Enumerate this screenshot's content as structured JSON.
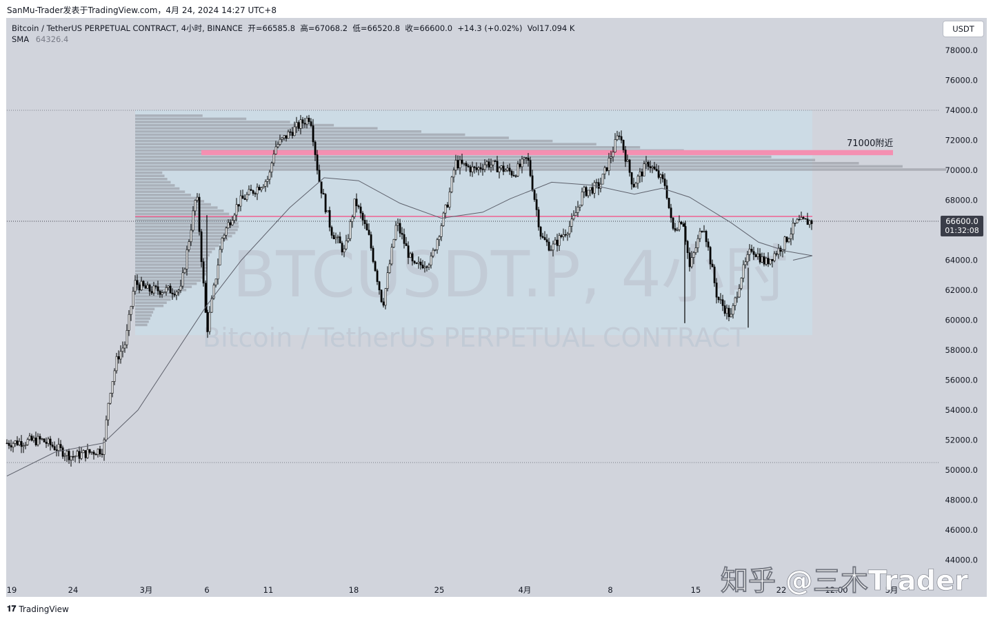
{
  "header": {
    "caption": "SanMu-Trader发表于TradingView.com，4月 24, 2024 14:27 UTC+8"
  },
  "legend": {
    "symbol": "Bitcoin / TetherUS PERPETUAL CONTRACT, 4小时, BINANCE",
    "open_label": "开=",
    "open": "66585.8",
    "high_label": "高=",
    "high": "67068.2",
    "low_label": "低=",
    "low": "66520.8",
    "close_label": "收=",
    "close": "66600.0",
    "change": "+14.3 (+0.02%)",
    "vol_label": "Vol",
    "vol": "17.094 K",
    "sma_label": "SMA",
    "sma_value": "64326.4"
  },
  "currency_button": "USDT",
  "watermark": {
    "ticker": "BTCUSDT.P, 4小时",
    "name": "Bitcoin / TetherUS PERPETUAL CONTRACT"
  },
  "overlay_text": "知乎 @三木Trader",
  "footer": {
    "brand": "TradingView"
  },
  "colors": {
    "background": "#d1d4dc",
    "range_box": "#cbdce6",
    "resistance_band": "#f48fb1",
    "price_line": "#f06292",
    "candle": "#000000",
    "sma": "#787b86",
    "volume_profile": "#9fa3ab",
    "price_tag": "#3a3d48"
  },
  "chart_data": {
    "type": "candlestick",
    "timeframe": "4小时",
    "ylim": [
      43000,
      79500
    ],
    "y_ticks": [
      44000,
      46000,
      48000,
      50000,
      52000,
      54000,
      56000,
      58000,
      60000,
      62000,
      64000,
      66000,
      68000,
      70000,
      72000,
      74000,
      76000,
      78000
    ],
    "y_tick_labels": [
      "44000.0",
      "46000.0",
      "48000.0",
      "50000.0",
      "52000.0",
      "54000.0",
      "56000.0",
      "58000.0",
      "60000.0",
      "62000.0",
      "64000.0",
      "66000.0",
      "68000.0",
      "70000.0",
      "72000.0",
      "74000.0",
      "76000.0",
      "78000.0"
    ],
    "x_ticks": [
      "19",
      "24",
      "3月",
      "6",
      "11",
      "18",
      "25",
      "4月",
      "8",
      "15",
      "22",
      "12:00",
      "5月"
    ],
    "bars_from_feb19": 392,
    "current_price": {
      "value": 66600.0,
      "label": "66600.0",
      "countdown": "01:32:08"
    },
    "horizontal_lines": [
      {
        "name": "range-top",
        "value": 74000,
        "style": "dotted"
      },
      {
        "name": "range-bottom",
        "value": 50500,
        "style": "dotted"
      }
    ],
    "resistance_band": {
      "from": 71050,
      "to": 71300,
      "label": "71000附近"
    },
    "range_box": {
      "high": 74000,
      "low": 59000
    },
    "sma_last": 64326.4,
    "key_points": [
      {
        "date": "Feb 19",
        "price": 51800
      },
      {
        "date": "Feb 24",
        "price": 50800
      },
      {
        "date": "Feb 27",
        "price": 51500
      },
      {
        "date": "Feb 28",
        "price": 57000
      },
      {
        "date": "Mar 1",
        "price": 61500
      },
      {
        "date": "Mar 5",
        "price": 68500
      },
      {
        "date": "Mar 5",
        "price": 59200
      },
      {
        "date": "Mar 8",
        "price": 67500
      },
      {
        "date": "Mar 11",
        "price": 72000
      },
      {
        "date": "Mar 14",
        "price": 73700
      },
      {
        "date": "Mar 17",
        "price": 66000
      },
      {
        "date": "Mar 20",
        "price": 61000
      },
      {
        "date": "Mar 22",
        "price": 65500
      },
      {
        "date": "Mar 24",
        "price": 63000
      },
      {
        "date": "Mar 26",
        "price": 71000
      },
      {
        "date": "Apr 1",
        "price": 70000
      },
      {
        "date": "Apr 3",
        "price": 65500
      },
      {
        "date": "Apr 6",
        "price": 68500
      },
      {
        "date": "Apr 8",
        "price": 72500
      },
      {
        "date": "Apr 10",
        "price": 68500
      },
      {
        "date": "Apr 12",
        "price": 71000
      },
      {
        "date": "Apr 13",
        "price": 60500
      },
      {
        "date": "Apr 15",
        "price": 66500
      },
      {
        "date": "Apr 17",
        "price": 60000
      },
      {
        "date": "Apr 19",
        "price": 60000
      },
      {
        "date": "Apr 20",
        "price": 64500
      },
      {
        "date": "Apr 22",
        "price": 65500
      },
      {
        "date": "Apr 24",
        "price": 66600
      }
    ]
  }
}
